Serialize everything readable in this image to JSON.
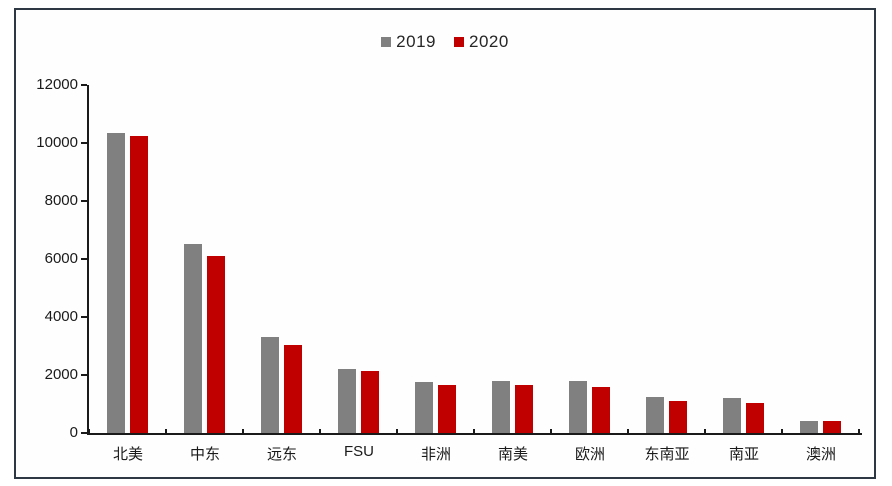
{
  "chart_data": {
    "type": "bar",
    "title": "",
    "categories": [
      "北美",
      "中东",
      "远东",
      "FSU",
      "非洲",
      "南美",
      "欧洲",
      "东南亚",
      "南亚",
      "澳洲"
    ],
    "series": [
      {
        "name": "2019",
        "color": "#808080",
        "values": [
          10350,
          6500,
          3300,
          2200,
          1750,
          1800,
          1800,
          1250,
          1200,
          400
        ]
      },
      {
        "name": "2020",
        "color": "#c00000",
        "values": [
          10250,
          6100,
          3050,
          2150,
          1650,
          1650,
          1600,
          1100,
          1050,
          430
        ]
      }
    ],
    "xlabel": "",
    "ylabel": "",
    "ylim": [
      0,
      12000
    ],
    "yticks": [
      0,
      2000,
      4000,
      6000,
      8000,
      10000,
      12000
    ],
    "legend_position": "top-center",
    "grid": false,
    "frame_color": "#2e3744",
    "axis_color": "#1a1a1a",
    "background": "#ffffff"
  }
}
